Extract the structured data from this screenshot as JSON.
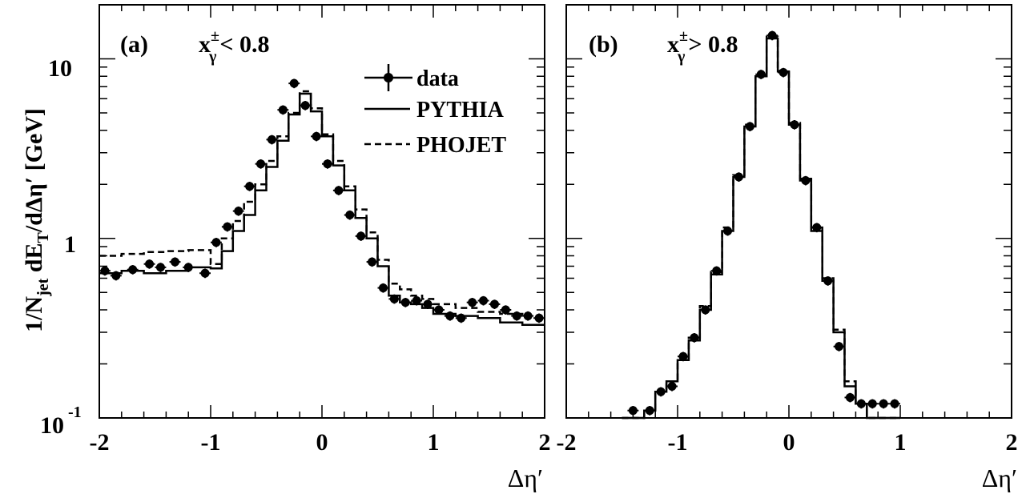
{
  "y_axis_label": "1/N_jet dE_T/dΔη′ [GeV]",
  "y_axis_label_parts": {
    "prefix": "1/N",
    "sub1": "jet",
    "mid": " dE",
    "sub2": "T",
    "suffix": "/dΔη′ [GeV]"
  },
  "y_tick_labels": {
    "ten": "10",
    "one": "1",
    "tenth_base": "10",
    "tenth_exp": "-1"
  },
  "legend": {
    "data": "data",
    "pythia": "PYTHIA",
    "phojet": "PHOJET"
  },
  "chart_data": [
    {
      "type": "line",
      "panel_label": "(a)",
      "selection": "x_γ^± < 0.8",
      "selection_parts": {
        "base": "x",
        "sup": "±",
        "sub": "γ",
        "rel": "< 0.8"
      },
      "xlabel": "Δη′",
      "ylabel": "1/N_jet dE_T/dΔη′ [GeV]",
      "xlim": [
        -2,
        2
      ],
      "ylim": [
        0.1,
        20
      ],
      "log_y": true,
      "x_tick_labels": [
        "-2",
        "-1",
        "0",
        "1",
        "2"
      ],
      "legend_position": "top-right",
      "bin_edges": [
        -2.0,
        -1.8,
        -1.6,
        -1.4,
        -1.2,
        -1.0,
        -0.9,
        -0.8,
        -0.7,
        -0.6,
        -0.5,
        -0.4,
        -0.3,
        -0.2,
        -0.1,
        0.0,
        0.1,
        0.2,
        0.3,
        0.4,
        0.5,
        0.6,
        0.7,
        0.8,
        0.9,
        1.0,
        1.2,
        1.4,
        1.6,
        1.8,
        2.0
      ],
      "series": [
        {
          "name": "data",
          "x": [
            -1.95,
            -1.85,
            -1.7,
            -1.55,
            -1.45,
            -1.32,
            -1.2,
            -1.05,
            -0.95,
            -0.85,
            -0.75,
            -0.65,
            -0.55,
            -0.45,
            -0.35,
            -0.25,
            -0.15,
            -0.05,
            0.05,
            0.15,
            0.25,
            0.35,
            0.45,
            0.55,
            0.65,
            0.75,
            0.85,
            0.95,
            1.05,
            1.15,
            1.25,
            1.35,
            1.45,
            1.55,
            1.65,
            1.75,
            1.85,
            1.95
          ],
          "y": [
            0.66,
            0.62,
            0.67,
            0.72,
            0.69,
            0.74,
            0.69,
            0.64,
            0.95,
            1.16,
            1.42,
            1.95,
            2.6,
            3.55,
            5.2,
            7.3,
            5.5,
            3.7,
            2.6,
            1.85,
            1.35,
            1.03,
            0.74,
            0.53,
            0.46,
            0.44,
            0.45,
            0.43,
            0.4,
            0.37,
            0.36,
            0.44,
            0.45,
            0.43,
            0.4,
            0.37,
            0.37,
            0.36
          ]
        },
        {
          "name": "PYTHIA",
          "values": [
            0.64,
            0.66,
            0.64,
            0.66,
            0.69,
            0.68,
            0.85,
            1.1,
            1.35,
            1.85,
            2.5,
            3.5,
            4.9,
            6.4,
            5.1,
            3.7,
            2.55,
            1.85,
            1.3,
            1.0,
            0.7,
            0.48,
            0.44,
            0.43,
            0.41,
            0.38,
            0.37,
            0.36,
            0.34,
            0.33
          ]
        },
        {
          "name": "PHOJET",
          "values": [
            0.8,
            0.82,
            0.84,
            0.85,
            0.86,
            0.72,
            1.0,
            1.25,
            1.6,
            2.0,
            2.7,
            3.7,
            5.0,
            6.6,
            5.3,
            3.8,
            2.7,
            1.95,
            1.45,
            1.08,
            0.76,
            0.56,
            0.52,
            0.48,
            0.46,
            0.43,
            0.41,
            0.39,
            0.38,
            0.37
          ]
        }
      ]
    },
    {
      "type": "line",
      "panel_label": "(b)",
      "selection": "x_γ^± > 0.8",
      "selection_parts": {
        "base": "x",
        "sup": "±",
        "sub": "γ",
        "rel": "> 0.8"
      },
      "xlabel": "Δη′",
      "ylabel": "1/N_jet dE_T/dΔη′ [GeV]",
      "xlim": [
        -2,
        2
      ],
      "ylim": [
        0.1,
        20
      ],
      "log_y": true,
      "x_tick_labels": [
        "-2",
        "-1",
        "0",
        "1",
        "2"
      ],
      "bin_edges": [
        -1.5,
        -1.3,
        -1.2,
        -1.1,
        -1.0,
        -0.9,
        -0.8,
        -0.7,
        -0.6,
        -0.5,
        -0.4,
        -0.3,
        -0.2,
        -0.1,
        0.0,
        0.1,
        0.2,
        0.3,
        0.4,
        0.5,
        0.6,
        0.7,
        0.8,
        0.9,
        1.0
      ],
      "series": [
        {
          "name": "data",
          "x": [
            -1.4,
            -1.25,
            -1.15,
            -1.05,
            -0.95,
            -0.85,
            -0.75,
            -0.65,
            -0.55,
            -0.45,
            -0.35,
            -0.25,
            -0.15,
            -0.05,
            0.05,
            0.15,
            0.25,
            0.35,
            0.45,
            0.55,
            0.65,
            0.75,
            0.85,
            0.95
          ],
          "y": [
            0.11,
            0.11,
            0.14,
            0.15,
            0.22,
            0.28,
            0.4,
            0.66,
            1.1,
            2.2,
            4.2,
            8.2,
            13.5,
            8.4,
            4.3,
            2.1,
            1.15,
            0.58,
            0.25,
            0.13,
            0.12,
            0.12,
            0.12,
            0.12
          ]
        },
        {
          "name": "PYTHIA",
          "values": [
            0.1,
            0.11,
            0.14,
            0.16,
            0.21,
            0.27,
            0.4,
            0.63,
            1.1,
            2.2,
            4.2,
            8.0,
            13.0,
            8.5,
            4.3,
            2.1,
            1.1,
            0.58,
            0.3,
            0.15,
            0.12,
            0.1,
            0.1,
            0.1
          ]
        },
        {
          "name": "PHOJET",
          "values": [
            0.1,
            0.11,
            0.14,
            0.16,
            0.21,
            0.28,
            0.42,
            0.65,
            1.15,
            2.25,
            4.3,
            8.2,
            13.3,
            8.6,
            4.4,
            2.15,
            1.15,
            0.6,
            0.31,
            0.16,
            0.12,
            0.1,
            0.1,
            0.1
          ]
        }
      ]
    }
  ]
}
